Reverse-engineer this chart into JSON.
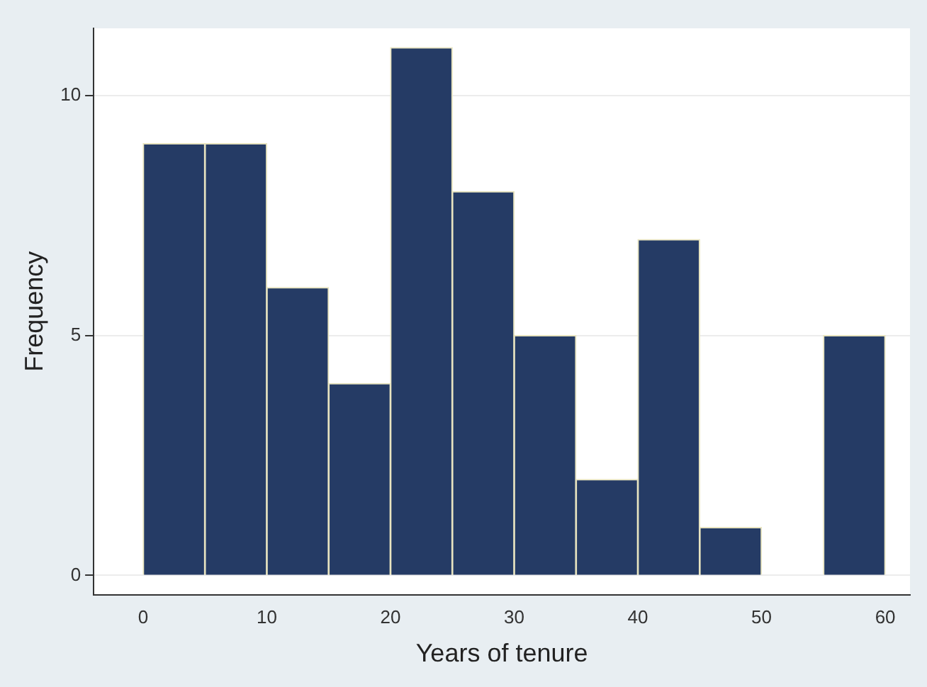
{
  "chart_data": {
    "type": "histogram",
    "xlabel": "Years of tenure",
    "ylabel": "Frequency",
    "bins": [
      0,
      5,
      10,
      15,
      20,
      25,
      30,
      35,
      40,
      45,
      50,
      55,
      60
    ],
    "values": [
      9,
      9,
      6,
      4,
      11,
      8,
      5,
      2,
      7,
      1,
      0,
      5
    ],
    "color": "#253b65",
    "xlim": [
      -4,
      62
    ],
    "xticks": [
      0,
      10,
      20,
      30,
      40,
      50,
      60
    ],
    "ylim": [
      -0.4,
      11.4
    ],
    "yticks": [
      0,
      5,
      10
    ],
    "grid": "y",
    "legend": false
  }
}
